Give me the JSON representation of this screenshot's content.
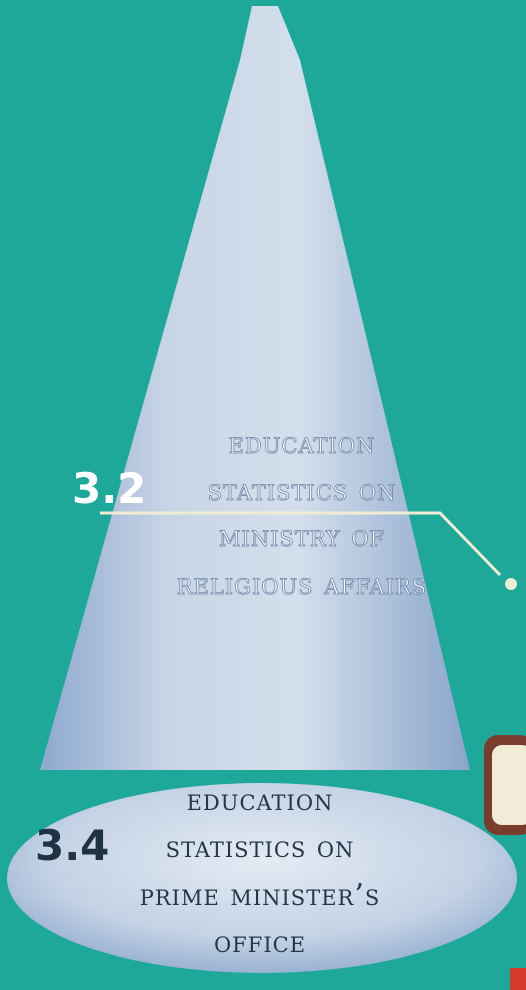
{
  "items": [
    {
      "number": "3.2",
      "lines": [
        "Education",
        "Statistics on",
        "Ministry of",
        "Religious Affairs"
      ]
    },
    {
      "number": "3.4",
      "lines": [
        "Education",
        "Statistics on",
        "Prime Minister’s",
        "Office"
      ]
    }
  ]
}
